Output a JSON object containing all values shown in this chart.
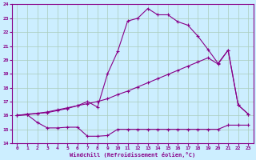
{
  "xlabel": "Windchill (Refroidissement éolien,°C)",
  "bg_color": "#cceeff",
  "grid_color": "#aaccbb",
  "line_color": "#880088",
  "xlim": [
    -0.5,
    23.5
  ],
  "ylim": [
    14,
    24
  ],
  "xticks": [
    0,
    1,
    2,
    3,
    4,
    5,
    6,
    7,
    8,
    9,
    10,
    11,
    12,
    13,
    14,
    15,
    16,
    17,
    18,
    19,
    20,
    21,
    22,
    23
  ],
  "yticks": [
    14,
    15,
    16,
    17,
    18,
    19,
    20,
    21,
    22,
    23,
    24
  ],
  "curve1_x": [
    0,
    1,
    2,
    3,
    4,
    5,
    6,
    7,
    8,
    9,
    10,
    11,
    12,
    13,
    14,
    15,
    16,
    17,
    18,
    19,
    20,
    21,
    22,
    23
  ],
  "curve1_y": [
    16.0,
    16.1,
    16.15,
    16.2,
    16.35,
    16.5,
    16.7,
    17.0,
    16.6,
    19.0,
    20.6,
    22.8,
    23.0,
    23.7,
    23.25,
    23.25,
    22.75,
    22.5,
    21.7,
    20.75,
    19.75,
    20.7,
    16.75,
    16.1
  ],
  "curve2_x": [
    0,
    1,
    2,
    3,
    4,
    5,
    6,
    7,
    8,
    9,
    10,
    11,
    12,
    13,
    14,
    15,
    16,
    17,
    18,
    19,
    20,
    21,
    22,
    23
  ],
  "curve2_y": [
    16.0,
    16.05,
    16.15,
    16.25,
    16.4,
    16.55,
    16.7,
    16.85,
    17.0,
    17.2,
    17.5,
    17.75,
    18.05,
    18.35,
    18.65,
    18.95,
    19.25,
    19.55,
    19.85,
    20.15,
    19.7,
    20.7,
    16.75,
    16.1
  ],
  "curve3_x": [
    0,
    1,
    2,
    3,
    4,
    5,
    6,
    7,
    8,
    9,
    10,
    11,
    12,
    13,
    14,
    15,
    16,
    17,
    18,
    19,
    20,
    21,
    22,
    23
  ],
  "curve3_y": [
    16.0,
    16.05,
    15.5,
    15.1,
    15.1,
    15.15,
    15.15,
    14.5,
    14.5,
    14.55,
    15.0,
    15.0,
    15.0,
    15.0,
    15.0,
    15.0,
    15.0,
    15.0,
    15.0,
    15.0,
    15.0,
    15.3,
    15.3,
    15.3
  ]
}
